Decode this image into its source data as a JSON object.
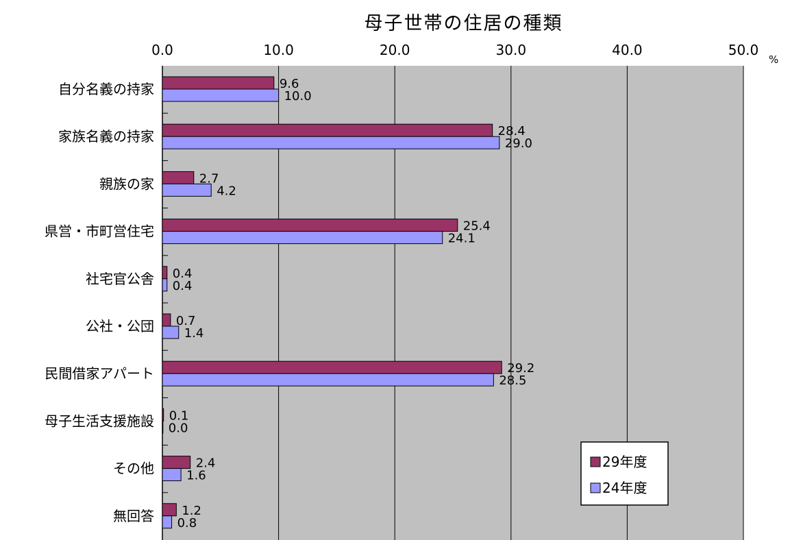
{
  "chart_data": {
    "type": "bar",
    "orientation": "horizontal",
    "title": "母子世帯の住居の種類",
    "unit": "%",
    "xlim": [
      0,
      50
    ],
    "xticks": [
      "0.0",
      "10.0",
      "20.0",
      "30.0",
      "40.0",
      "50.0"
    ],
    "grid": true,
    "legend_position": "bottom-right",
    "categories": [
      "自分名義の持家",
      "家族名義の持家",
      "親族の家",
      "県営・市町営住宅",
      "社宅官公舎",
      "公社・公団",
      "民間借家アパート",
      "母子生活支援施設",
      "その他",
      "無回答"
    ],
    "series": [
      {
        "name": "29年度",
        "color": "#993366",
        "values": [
          9.6,
          28.4,
          2.7,
          25.4,
          0.4,
          0.7,
          29.2,
          0.1,
          2.4,
          1.2
        ],
        "labels": [
          "9.6",
          "28.4",
          "2.7",
          "25.4",
          "0.4",
          "0.7",
          "29.2",
          "0.1",
          "2.4",
          "1.2"
        ]
      },
      {
        "name": "24年度",
        "color": "#9999ff",
        "values": [
          10.0,
          29.0,
          4.2,
          24.1,
          0.4,
          1.4,
          28.5,
          0.0,
          1.6,
          0.8
        ],
        "labels": [
          "10.0",
          "29.0",
          "4.2",
          "24.1",
          "0.4",
          "1.4",
          "28.5",
          "0.0",
          "1.6",
          "0.8"
        ]
      }
    ],
    "plot_background": "#c0c0c0"
  }
}
